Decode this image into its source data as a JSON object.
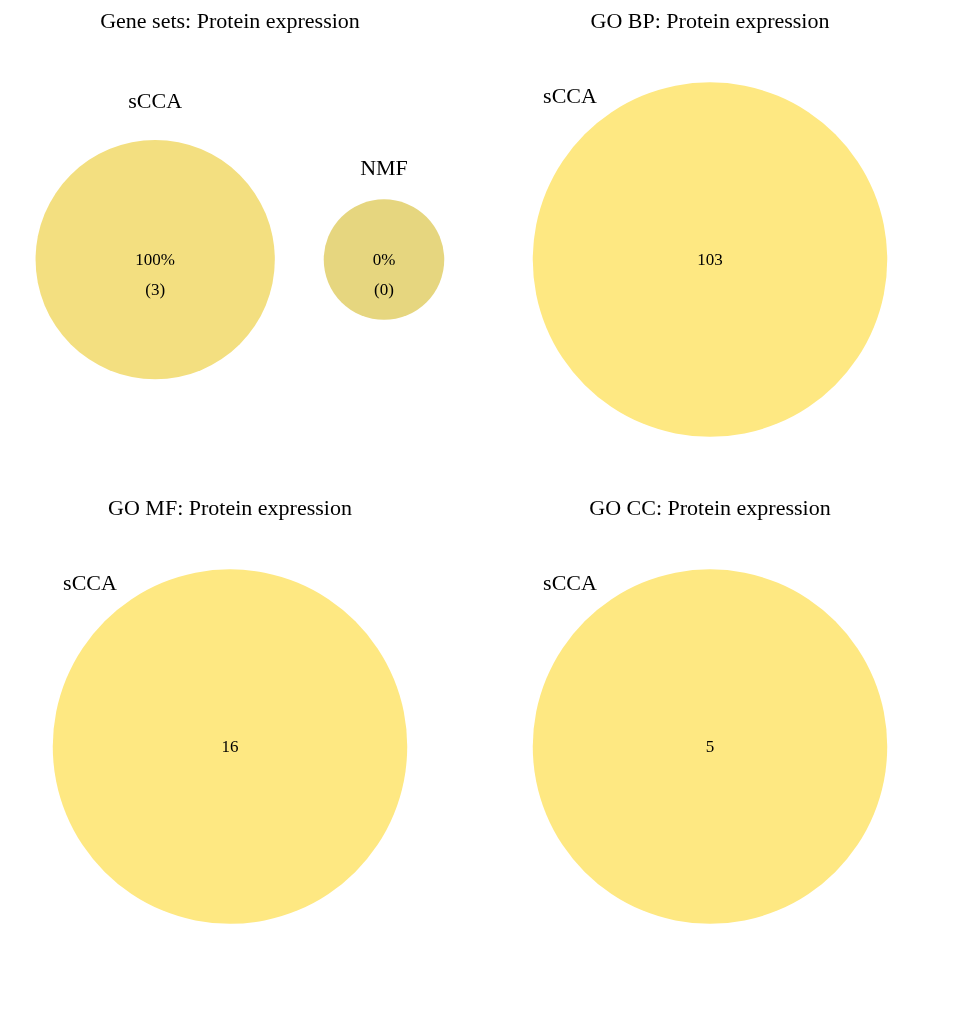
{
  "chart_data": [
    {
      "type": "other",
      "title": "Gene sets: Protein expression",
      "categories": [
        "sCCA",
        "NMF"
      ],
      "values": [
        3,
        0
      ],
      "value_labels": [
        "100%\n(3)",
        "0%\n(0)"
      ],
      "colors": [
        "#f3df80",
        "#e6d67f"
      ]
    },
    {
      "type": "other",
      "title": "GO BP: Protein expression",
      "categories": [
        "sCCA"
      ],
      "values": [
        103
      ],
      "data_labels": true,
      "colors": [
        "#fee882"
      ]
    },
    {
      "type": "other",
      "title": "GO MF: Protein expression",
      "categories": [
        "sCCA"
      ],
      "values": [
        16
      ],
      "data_labels": true,
      "colors": [
        "#fee882"
      ]
    },
    {
      "type": "other",
      "title": "GO CC: Protein expression",
      "categories": [
        "sCCA"
      ],
      "values": [
        5
      ],
      "data_labels": true,
      "colors": [
        "#fee882"
      ]
    }
  ]
}
